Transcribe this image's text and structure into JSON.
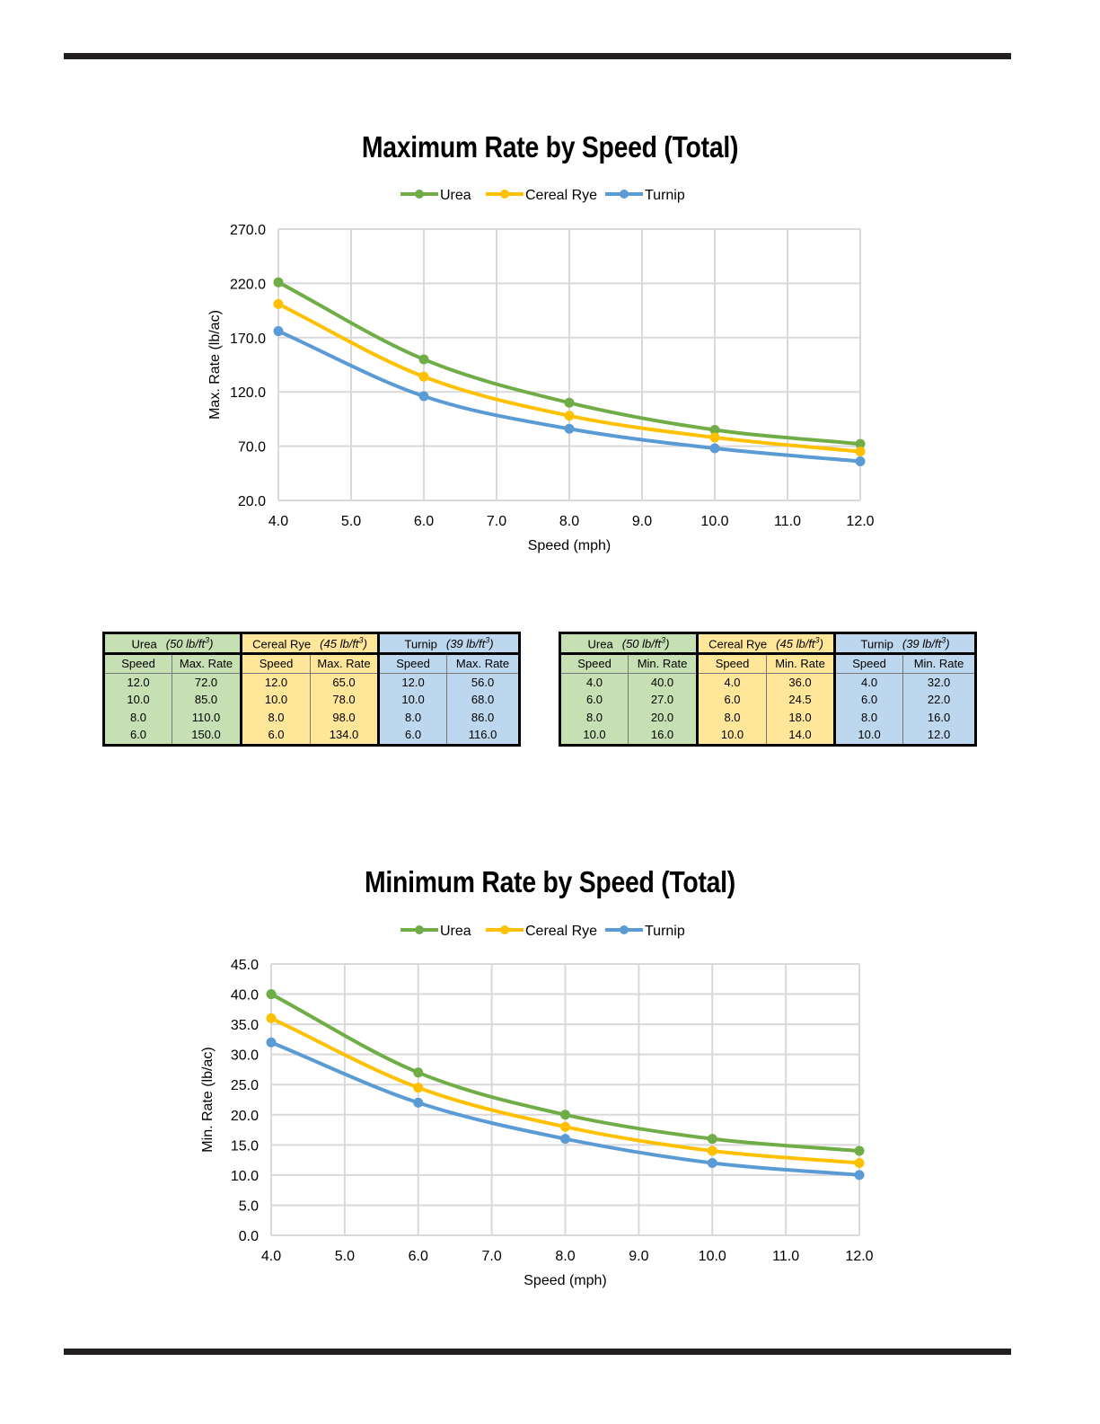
{
  "colors": {
    "urea": "#70ad47",
    "cereal_rye": "#ffc000",
    "turnip": "#5b9bd5",
    "grid": "#d9d9d9",
    "rule": "#231f20"
  },
  "chart_data": [
    {
      "type": "line",
      "title": "Maximum Rate by Speed (Total)",
      "xlabel": "Speed (mph)",
      "ylabel": "Max. Rate (lb/ac)",
      "xlim": [
        4.0,
        12.0
      ],
      "ylim": [
        20.0,
        270.0
      ],
      "x_ticks": [
        "4.0",
        "5.0",
        "6.0",
        "7.0",
        "8.0",
        "9.0",
        "10.0",
        "11.0",
        "12.0"
      ],
      "y_ticks": [
        "20.0",
        "70.0",
        "120.0",
        "170.0",
        "220.0",
        "270.0"
      ],
      "grid": true,
      "legend": "top",
      "series": [
        {
          "name": "Urea",
          "color": "#70ad47",
          "x": [
            4.0,
            6.0,
            8.0,
            10.0,
            12.0
          ],
          "y": [
            221.0,
            150.0,
            110.0,
            85.0,
            72.0
          ]
        },
        {
          "name": "Cereal Rye",
          "color": "#ffc000",
          "x": [
            4.0,
            6.0,
            8.0,
            10.0,
            12.0
          ],
          "y": [
            201.0,
            134.0,
            98.0,
            78.0,
            65.0
          ]
        },
        {
          "name": "Turnip",
          "color": "#5b9bd5",
          "x": [
            4.0,
            6.0,
            8.0,
            10.0,
            12.0
          ],
          "y": [
            176.0,
            116.0,
            86.0,
            68.0,
            56.0
          ]
        }
      ]
    },
    {
      "type": "line",
      "title": "Minimum Rate by Speed (Total)",
      "xlabel": "Speed (mph)",
      "ylabel": "Min. Rate (lb/ac)",
      "xlim": [
        4.0,
        12.0
      ],
      "ylim": [
        0.0,
        45.0
      ],
      "x_ticks": [
        "4.0",
        "5.0",
        "6.0",
        "7.0",
        "8.0",
        "9.0",
        "10.0",
        "11.0",
        "12.0"
      ],
      "y_ticks": [
        "0.0",
        "5.0",
        "10.0",
        "15.0",
        "20.0",
        "25.0",
        "30.0",
        "35.0",
        "40.0",
        "45.0"
      ],
      "grid": true,
      "legend": "top",
      "series": [
        {
          "name": "Urea",
          "color": "#70ad47",
          "x": [
            4.0,
            6.0,
            8.0,
            10.0,
            12.0
          ],
          "y": [
            40.0,
            27.0,
            20.0,
            16.0,
            14.0
          ]
        },
        {
          "name": "Cereal Rye",
          "color": "#ffc000",
          "x": [
            4.0,
            6.0,
            8.0,
            10.0,
            12.0
          ],
          "y": [
            36.0,
            24.5,
            18.0,
            14.0,
            12.0
          ]
        },
        {
          "name": "Turnip",
          "color": "#5b9bd5",
          "x": [
            4.0,
            6.0,
            8.0,
            10.0,
            12.0
          ],
          "y": [
            32.0,
            22.0,
            16.0,
            12.0,
            10.0
          ]
        }
      ]
    }
  ],
  "tables": {
    "max": {
      "groups": [
        {
          "name": "Urea",
          "density": "50 lb/ft",
          "sup": "3"
        },
        {
          "name": "Cereal Rye",
          "density": "45 lb/ft",
          "sup": "3"
        },
        {
          "name": "Turnip",
          "density": "39 lb/ft",
          "sup": "3"
        }
      ],
      "col_speed": "Speed",
      "col_rate": "Max. Rate",
      "rows": [
        [
          "12.0",
          "72.0",
          "12.0",
          "65.0",
          "12.0",
          "56.0"
        ],
        [
          "10.0",
          "85.0",
          "10.0",
          "78.0",
          "10.0",
          "68.0"
        ],
        [
          "8.0",
          "110.0",
          "8.0",
          "98.0",
          "8.0",
          "86.0"
        ],
        [
          "6.0",
          "150.0",
          "6.0",
          "134.0",
          "6.0",
          "116.0"
        ]
      ]
    },
    "min": {
      "groups": [
        {
          "name": "Urea",
          "density": "50 lb/ft",
          "sup": "3"
        },
        {
          "name": "Cereal Rye",
          "density": "45 lb/ft",
          "sup": "3"
        },
        {
          "name": "Turnip",
          "density": "39 lb/ft",
          "sup": "3"
        }
      ],
      "col_speed": "Speed",
      "col_rate": "Min. Rate",
      "rows": [
        [
          "4.0",
          "40.0",
          "4.0",
          "36.0",
          "4.0",
          "32.0"
        ],
        [
          "6.0",
          "27.0",
          "6.0",
          "24.5",
          "6.0",
          "22.0"
        ],
        [
          "8.0",
          "20.0",
          "8.0",
          "18.0",
          "8.0",
          "16.0"
        ],
        [
          "10.0",
          "16.0",
          "10.0",
          "14.0",
          "10.0",
          "12.0"
        ]
      ]
    }
  }
}
